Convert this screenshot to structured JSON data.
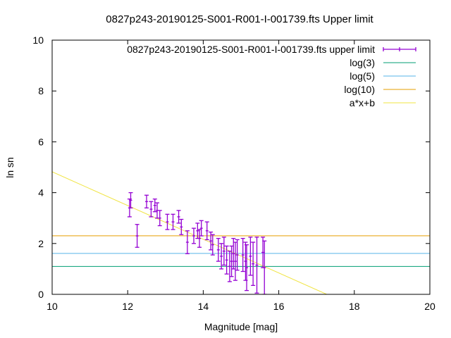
{
  "chart_data": {
    "type": "scatter",
    "title": "0827p243-20190125-S001-R001-I-001739.fts Upper limit",
    "xlabel": "Magnitude [mag]",
    "ylabel": "ln sn",
    "xlim": [
      10,
      20
    ],
    "ylim": [
      0,
      10
    ],
    "xticks": [
      "10",
      "12",
      "14",
      "16",
      "18",
      "20"
    ],
    "yticks": [
      "0",
      "2",
      "4",
      "6",
      "8",
      "10"
    ],
    "grid": false,
    "legend_position": "top-right",
    "series": [
      {
        "name": "0827p243-20190125-S001-R001-I-001739.fts upper limit",
        "kind": "errorbars",
        "color": "#9400d3",
        "points": [
          {
            "x": 12.05,
            "y": 3.4,
            "err": 0.35
          },
          {
            "x": 12.08,
            "y": 3.7,
            "err": 0.3
          },
          {
            "x": 12.25,
            "y": 2.3,
            "err": 0.45
          },
          {
            "x": 12.5,
            "y": 3.65,
            "err": 0.25
          },
          {
            "x": 12.62,
            "y": 3.35,
            "err": 0.3
          },
          {
            "x": 12.72,
            "y": 3.5,
            "err": 0.25
          },
          {
            "x": 12.78,
            "y": 3.3,
            "err": 0.3
          },
          {
            "x": 12.85,
            "y": 3.0,
            "err": 0.3
          },
          {
            "x": 13.05,
            "y": 2.85,
            "err": 0.3
          },
          {
            "x": 13.2,
            "y": 2.85,
            "err": 0.3
          },
          {
            "x": 13.35,
            "y": 3.05,
            "err": 0.25
          },
          {
            "x": 13.42,
            "y": 2.65,
            "err": 0.3
          },
          {
            "x": 13.58,
            "y": 2.05,
            "err": 0.45
          },
          {
            "x": 13.75,
            "y": 2.3,
            "err": 0.3
          },
          {
            "x": 13.85,
            "y": 2.5,
            "err": 0.3
          },
          {
            "x": 13.9,
            "y": 2.2,
            "err": 0.35
          },
          {
            "x": 13.95,
            "y": 2.6,
            "err": 0.3
          },
          {
            "x": 14.1,
            "y": 2.5,
            "err": 0.35
          },
          {
            "x": 14.2,
            "y": 2.1,
            "err": 0.35
          },
          {
            "x": 14.25,
            "y": 1.95,
            "err": 0.4
          },
          {
            "x": 14.4,
            "y": 1.75,
            "err": 0.45
          },
          {
            "x": 14.48,
            "y": 1.5,
            "err": 0.5
          },
          {
            "x": 14.55,
            "y": 1.7,
            "err": 0.55
          },
          {
            "x": 14.62,
            "y": 1.35,
            "err": 0.55
          },
          {
            "x": 14.7,
            "y": 1.1,
            "err": 0.6
          },
          {
            "x": 14.75,
            "y": 1.3,
            "err": 0.6
          },
          {
            "x": 14.8,
            "y": 1.6,
            "err": 0.6
          },
          {
            "x": 14.85,
            "y": 1.3,
            "err": 0.75
          },
          {
            "x": 14.9,
            "y": 1.55,
            "err": 0.6
          },
          {
            "x": 15.05,
            "y": 1.55,
            "err": 0.65
          },
          {
            "x": 15.12,
            "y": 1.3,
            "err": 0.75
          },
          {
            "x": 15.15,
            "y": 1.05,
            "err": 0.9
          },
          {
            "x": 15.25,
            "y": 1.5,
            "err": 0.75
          },
          {
            "x": 15.32,
            "y": 1.2,
            "err": 0.85
          },
          {
            "x": 15.42,
            "y": 1.15,
            "err": 1.1
          },
          {
            "x": 15.58,
            "y": 1.65,
            "err": 0.6
          },
          {
            "x": 15.62,
            "y": 1.05,
            "err": 1.05
          }
        ]
      },
      {
        "name": "log(3)",
        "kind": "hline",
        "color": "#009e73",
        "y": 1.0986
      },
      {
        "name": "log(5)",
        "kind": "hline",
        "color": "#56b4e9",
        "y": 1.6094
      },
      {
        "name": "log(10)",
        "kind": "hline",
        "color": "#e69f00",
        "y": 2.3026
      },
      {
        "name": "a*x+b",
        "kind": "line",
        "color": "#f0e442",
        "points": [
          [
            10,
            4.82
          ],
          [
            17.27,
            0
          ]
        ]
      }
    ]
  }
}
